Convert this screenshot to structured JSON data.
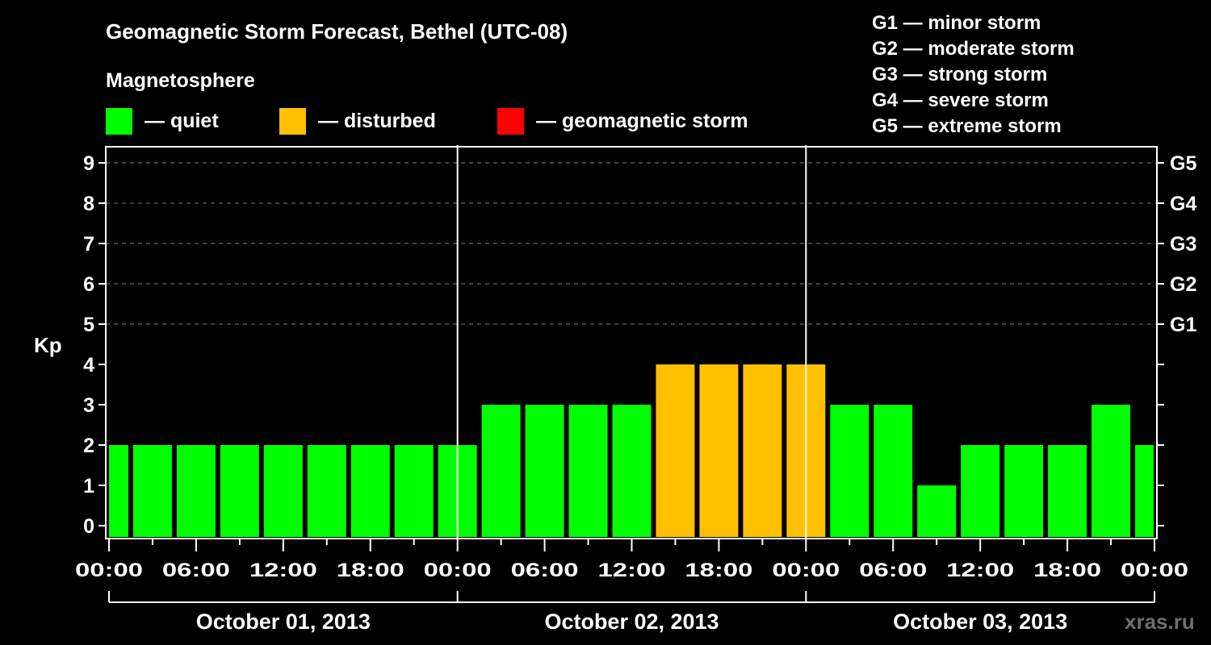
{
  "header": {
    "title": "Geomagnetic Storm Forecast, Bethel (UTC-08)",
    "subtitle": "Magnetosphere"
  },
  "legend": [
    {
      "label": "— quiet",
      "color": "#00ff00"
    },
    {
      "label": "— disturbed",
      "color": "#ffc000"
    },
    {
      "label": "— geomagnetic storm",
      "color": "#ff0000"
    }
  ],
  "g_scale": [
    "G1 — minor storm",
    "G2 — moderate storm",
    "G3 — strong storm",
    "G4 — severe storm",
    "G5 — extreme storm"
  ],
  "watermark": "xras.ru",
  "chart_data": {
    "type": "bar",
    "title": "Geomagnetic Storm Forecast, Bethel (UTC-08)",
    "xlabel": "",
    "ylabel": "Kp",
    "ylim": [
      0,
      9
    ],
    "yticks": [
      0,
      1,
      2,
      3,
      4,
      5,
      6,
      7,
      8,
      9
    ],
    "right_axis_labels": [
      {
        "kp": 5,
        "label": "G1"
      },
      {
        "kp": 6,
        "label": "G2"
      },
      {
        "kp": 7,
        "label": "G3"
      },
      {
        "kp": 8,
        "label": "G4"
      },
      {
        "kp": 9,
        "label": "G5"
      }
    ],
    "grid": "dashed horizontal at Kp 5-9",
    "xtick_labels": [
      "00:00",
      "06:00",
      "12:00",
      "18:00",
      "00:00",
      "06:00",
      "12:00",
      "18:00",
      "00:00",
      "06:00",
      "12:00",
      "18:00",
      "00:00"
    ],
    "date_labels": [
      "October 01, 2013",
      "October 02, 2013",
      "October 03, 2013"
    ],
    "bar_interval_hours": 3,
    "bar_offset_hours": -1.5,
    "categories": [
      "Oct 01 -01:30",
      "Oct 01 01:30",
      "Oct 01 04:30",
      "Oct 01 07:30",
      "Oct 01 10:30",
      "Oct 01 13:30",
      "Oct 01 16:30",
      "Oct 01 19:30",
      "Oct 01 22:30",
      "Oct 02 01:30",
      "Oct 02 04:30",
      "Oct 02 07:30",
      "Oct 02 10:30",
      "Oct 02 13:30",
      "Oct 02 16:30",
      "Oct 02 19:30",
      "Oct 02 22:30",
      "Oct 03 01:30",
      "Oct 03 04:30",
      "Oct 03 07:30",
      "Oct 03 10:30",
      "Oct 03 13:30",
      "Oct 03 16:30",
      "Oct 03 19:30",
      "Oct 03 22:30"
    ],
    "values": [
      2,
      2,
      2,
      2,
      2,
      2,
      2,
      2,
      2,
      3,
      3,
      3,
      3,
      4,
      4,
      4,
      4,
      3,
      3,
      1,
      2,
      2,
      2,
      3,
      2
    ],
    "status": [
      "quiet",
      "quiet",
      "quiet",
      "quiet",
      "quiet",
      "quiet",
      "quiet",
      "quiet",
      "quiet",
      "quiet",
      "quiet",
      "quiet",
      "quiet",
      "disturbed",
      "disturbed",
      "disturbed",
      "disturbed",
      "quiet",
      "quiet",
      "quiet",
      "quiet",
      "quiet",
      "quiet",
      "quiet",
      "quiet"
    ],
    "colors": {
      "quiet": "#00ff00",
      "disturbed": "#ffc000",
      "storm": "#ff0000"
    }
  }
}
